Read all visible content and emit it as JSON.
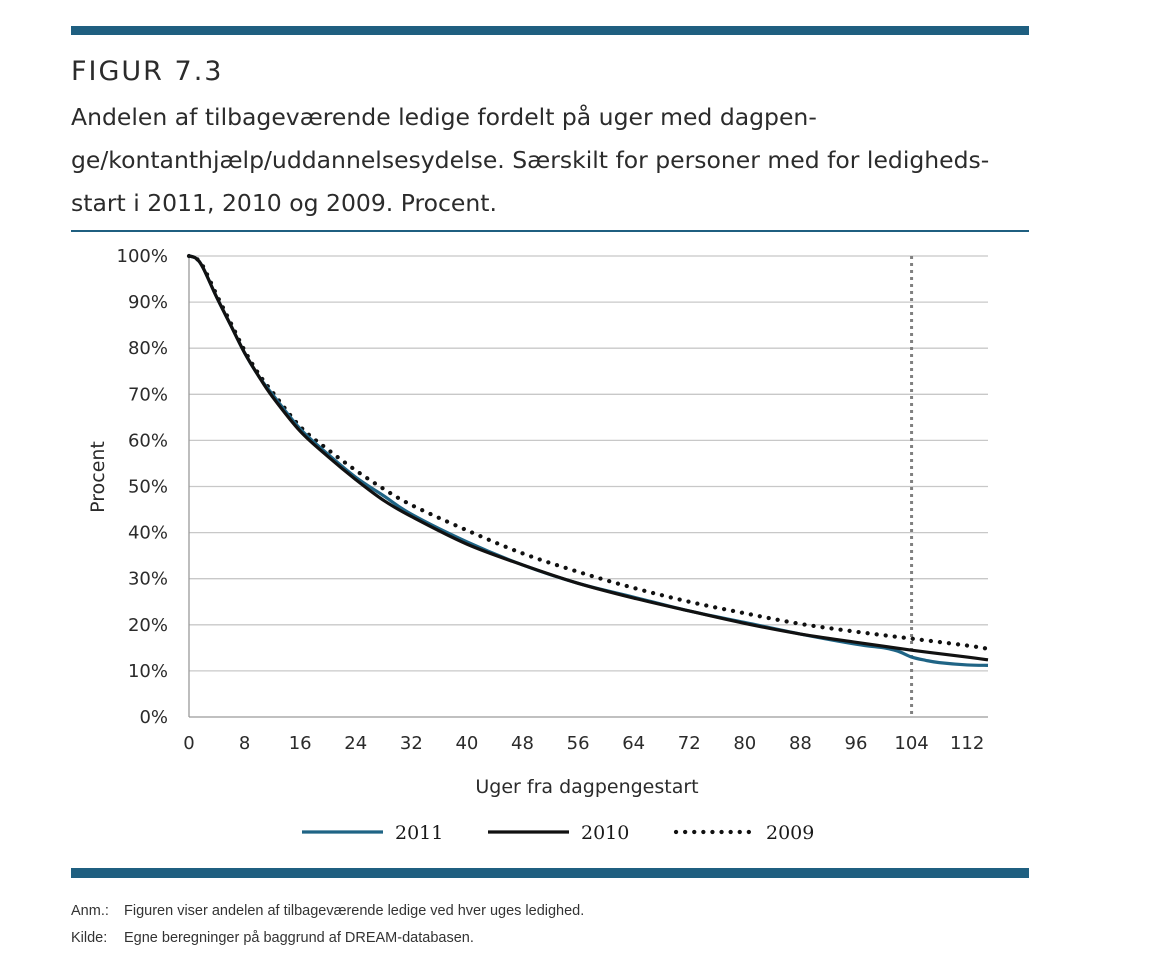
{
  "figure": {
    "label": "FIGUR 7.3",
    "title": "Andelen af tilbageværende ledige fordelt på uger med dagpen-\nge/kontanthjælp/uddannelsesydelse. Særskilt for personer med for ledigheds-\nstart i 2011, 2010 og 2009. Procent."
  },
  "notes": {
    "anm_label": "Anm.:",
    "anm_text": "Figuren viser andelen af tilbageværende ledige ved hver uges ledighed.",
    "kilde_label": "Kilde:",
    "kilde_text": "Egne beregninger på baggrund af DREAM-databasen."
  },
  "colors": {
    "brand_bar": "#1f5f80",
    "series_2011": "#1f6485",
    "series_2010": "#111111",
    "series_2009": "#111111",
    "grid": "#c8c8c8",
    "marker_line": "#808080"
  },
  "chart_data": {
    "type": "line",
    "title": "",
    "xlabel": "Uger fra dagpengestart",
    "ylabel": "Procent",
    "xlim": [
      0,
      115
    ],
    "ylim": [
      0,
      100
    ],
    "x_ticks": [
      0,
      8,
      16,
      24,
      32,
      40,
      48,
      56,
      64,
      72,
      80,
      88,
      96,
      104,
      112
    ],
    "y_ticks": [
      0,
      10,
      20,
      30,
      40,
      50,
      60,
      70,
      80,
      90,
      100
    ],
    "y_tick_labels": [
      "0%",
      "10%",
      "20%",
      "30%",
      "40%",
      "50%",
      "60%",
      "70%",
      "80%",
      "90%",
      "100%"
    ],
    "grid": "horizontal",
    "reference_line": {
      "x": 104,
      "style": "dotted"
    },
    "legend_position": "bottom",
    "series": [
      {
        "name": "2011",
        "style": "solid",
        "x": [
          0,
          1,
          2,
          4,
          6,
          8,
          10,
          12,
          16,
          20,
          24,
          28,
          32,
          40,
          48,
          56,
          64,
          72,
          80,
          88,
          96,
          100,
          102,
          104,
          106,
          108,
          112,
          115
        ],
        "values": [
          100,
          99.5,
          97.5,
          91,
          85,
          79,
          74,
          70,
          62.5,
          57,
          52,
          48,
          44,
          38,
          33,
          29,
          26,
          23,
          20.5,
          18,
          15.8,
          15,
          14.3,
          13,
          12.3,
          11.8,
          11.3,
          11.2
        ]
      },
      {
        "name": "2010",
        "style": "solid",
        "x": [
          0,
          1,
          2,
          4,
          6,
          8,
          10,
          12,
          16,
          20,
          24,
          28,
          32,
          40,
          48,
          56,
          64,
          72,
          80,
          88,
          96,
          104,
          112,
          115
        ],
        "values": [
          100,
          99.5,
          97.5,
          91,
          85,
          79,
          74,
          69.5,
          62,
          56.5,
          51.5,
          47,
          43.5,
          37.5,
          33,
          29,
          25.8,
          23,
          20.3,
          18,
          16.2,
          14.5,
          13,
          12.4
        ]
      },
      {
        "name": "2009",
        "style": "dotted",
        "x": [
          0,
          1,
          2,
          4,
          6,
          8,
          10,
          12,
          16,
          20,
          24,
          28,
          32,
          40,
          48,
          56,
          64,
          72,
          80,
          88,
          96,
          104,
          112,
          115
        ],
        "values": [
          100,
          99.5,
          97.8,
          91.5,
          85.5,
          79.5,
          74.5,
          70.5,
          63,
          58,
          53.5,
          49.5,
          46,
          40.5,
          35.5,
          31.5,
          28,
          25,
          22.5,
          20.2,
          18.5,
          17,
          15.5,
          14.8
        ]
      }
    ]
  }
}
